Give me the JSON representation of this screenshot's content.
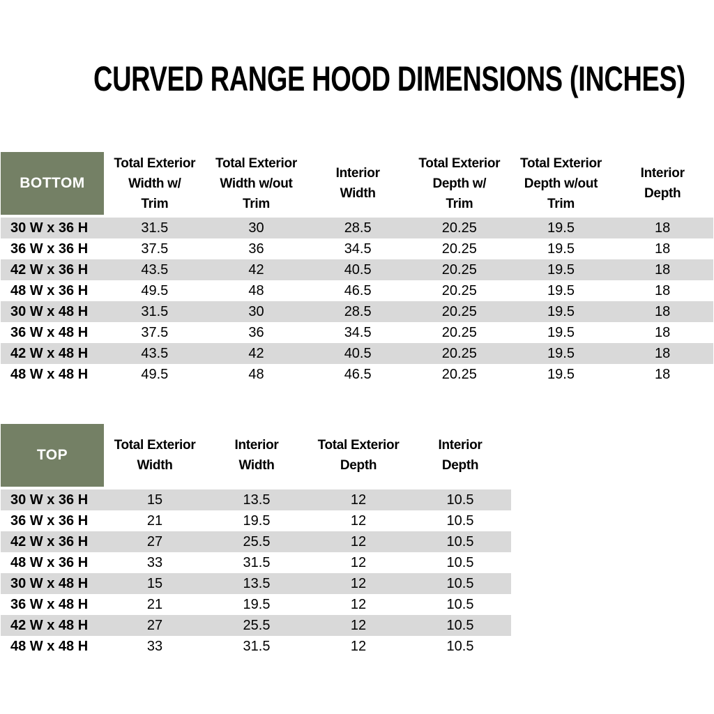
{
  "title": "CURVED RANGE HOOD DIMENSIONS (INCHES)",
  "colors": {
    "header_green": "#748065",
    "row_stripe_gray": "#D9D9D9",
    "header_text_white": "#FFFFFF",
    "body_text_black": "#000000"
  },
  "bottom_table": {
    "corner_label": "BOTTOM",
    "headers": [
      [
        "Total Exterior",
        "Width w/",
        "Trim"
      ],
      [
        "Total Exterior",
        "Width w/out",
        "Trim"
      ],
      [
        "Interior",
        "Width"
      ],
      [
        "Total Exterior",
        "Depth w/",
        "Trim"
      ],
      [
        "Total Exterior",
        "Depth w/out",
        "Trim"
      ],
      [
        "Interior",
        "Depth"
      ]
    ],
    "rows": [
      {
        "label": "30 W x 36 H",
        "values": [
          "31.5",
          "30",
          "28.5",
          "20.25",
          "19.5",
          "18"
        ]
      },
      {
        "label": "36 W x 36 H",
        "values": [
          "37.5",
          "36",
          "34.5",
          "20.25",
          "19.5",
          "18"
        ]
      },
      {
        "label": "42 W x 36 H",
        "values": [
          "43.5",
          "42",
          "40.5",
          "20.25",
          "19.5",
          "18"
        ]
      },
      {
        "label": "48 W x 36 H",
        "values": [
          "49.5",
          "48",
          "46.5",
          "20.25",
          "19.5",
          "18"
        ]
      },
      {
        "label": "30 W x 48 H",
        "values": [
          "31.5",
          "30",
          "28.5",
          "20.25",
          "19.5",
          "18"
        ]
      },
      {
        "label": "36 W x 48 H",
        "values": [
          "37.5",
          "36",
          "34.5",
          "20.25",
          "19.5",
          "18"
        ]
      },
      {
        "label": "42 W x 48 H",
        "values": [
          "43.5",
          "42",
          "40.5",
          "20.25",
          "19.5",
          "18"
        ]
      },
      {
        "label": "48 W x 48 H",
        "values": [
          "49.5",
          "48",
          "46.5",
          "20.25",
          "19.5",
          "18"
        ]
      }
    ]
  },
  "top_table": {
    "corner_label": "TOP",
    "headers": [
      [
        "Total Exterior",
        "Width"
      ],
      [
        "Interior",
        "Width"
      ],
      [
        "Total Exterior",
        "Depth"
      ],
      [
        "Interior",
        "Depth"
      ]
    ],
    "rows": [
      {
        "label": "30 W x 36 H",
        "values": [
          "15",
          "13.5",
          "12",
          "10.5"
        ]
      },
      {
        "label": "36 W x 36 H",
        "values": [
          "21",
          "19.5",
          "12",
          "10.5"
        ]
      },
      {
        "label": "42 W x 36 H",
        "values": [
          "27",
          "25.5",
          "12",
          "10.5"
        ]
      },
      {
        "label": "48 W x 36 H",
        "values": [
          "33",
          "31.5",
          "12",
          "10.5"
        ]
      },
      {
        "label": "30 W x 48 H",
        "values": [
          "15",
          "13.5",
          "12",
          "10.5"
        ]
      },
      {
        "label": "36 W x 48 H",
        "values": [
          "21",
          "19.5",
          "12",
          "10.5"
        ]
      },
      {
        "label": "42 W x 48 H",
        "values": [
          "27",
          "25.5",
          "12",
          "10.5"
        ]
      },
      {
        "label": "48 W x 48 H",
        "values": [
          "33",
          "31.5",
          "12",
          "10.5"
        ]
      }
    ]
  }
}
